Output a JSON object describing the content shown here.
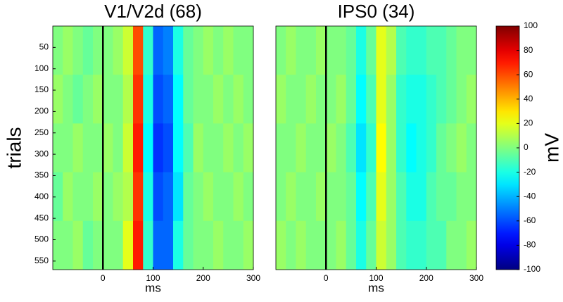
{
  "chart_data": [
    {
      "type": "heatmap",
      "title": "V1/V2d (68)",
      "xlabel": "ms",
      "ylabel": "trials",
      "xlim": [
        -100,
        300
      ],
      "xticks": [
        0,
        100,
        200,
        300
      ],
      "ylim": [
        0,
        570
      ],
      "y_reversed": true,
      "yticks": [
        50,
        100,
        150,
        200,
        250,
        300,
        350,
        400,
        450,
        500,
        550
      ],
      "vline": 0,
      "colormap": "jet",
      "x_bins": [
        -100,
        -80,
        -60,
        -40,
        -20,
        0,
        20,
        40,
        60,
        80,
        100,
        120,
        140,
        160,
        180,
        200,
        220,
        240,
        260,
        280,
        300
      ],
      "y_bins": [
        0,
        114,
        228,
        342,
        456,
        570
      ],
      "z": [
        [
          0,
          5,
          0,
          -5,
          0,
          0,
          5,
          15,
          60,
          -15,
          -55,
          -50,
          -20,
          -5,
          0,
          5,
          0,
          5,
          0,
          0
        ],
        [
          5,
          0,
          -5,
          0,
          5,
          0,
          0,
          10,
          65,
          -20,
          -60,
          -55,
          -25,
          -5,
          0,
          0,
          5,
          0,
          5,
          0
        ],
        [
          0,
          0,
          5,
          0,
          0,
          5,
          0,
          15,
          70,
          -25,
          -65,
          -60,
          -25,
          -10,
          5,
          0,
          0,
          5,
          0,
          5
        ],
        [
          -5,
          5,
          0,
          0,
          5,
          0,
          5,
          10,
          65,
          -20,
          -60,
          -55,
          -30,
          -5,
          0,
          5,
          0,
          0,
          5,
          0
        ],
        [
          0,
          0,
          5,
          -5,
          0,
          0,
          0,
          20,
          70,
          -15,
          -55,
          -55,
          -20,
          -5,
          0,
          0,
          5,
          0,
          0,
          5
        ]
      ]
    },
    {
      "type": "heatmap",
      "title": "IPS0 (34)",
      "xlabel": "ms",
      "xlim": [
        -100,
        300
      ],
      "xticks": [
        0,
        100,
        200,
        300
      ],
      "ylim": [
        0,
        570
      ],
      "y_reversed": true,
      "vline": 0,
      "colormap": "jet",
      "x_bins": [
        -100,
        -80,
        -60,
        -40,
        -20,
        0,
        20,
        40,
        60,
        80,
        100,
        120,
        140,
        160,
        180,
        200,
        220,
        240,
        260,
        280,
        300
      ],
      "y_bins": [
        0,
        114,
        228,
        342,
        456,
        570
      ],
      "z": [
        [
          0,
          5,
          0,
          0,
          5,
          0,
          0,
          -5,
          -20,
          -5,
          20,
          10,
          -10,
          -15,
          -15,
          -10,
          -10,
          -5,
          0,
          0
        ],
        [
          5,
          0,
          0,
          5,
          0,
          0,
          5,
          -5,
          -25,
          -10,
          20,
          5,
          -15,
          -20,
          -20,
          -15,
          -10,
          -5,
          0,
          5
        ],
        [
          0,
          0,
          5,
          0,
          0,
          5,
          0,
          -10,
          -30,
          -15,
          25,
          5,
          -15,
          -25,
          -20,
          -15,
          -5,
          0,
          5,
          0
        ],
        [
          0,
          5,
          0,
          0,
          5,
          0,
          0,
          -5,
          -25,
          -10,
          20,
          5,
          -10,
          -20,
          -20,
          -10,
          -5,
          -5,
          0,
          0
        ],
        [
          5,
          0,
          5,
          0,
          0,
          0,
          5,
          -5,
          -20,
          -5,
          15,
          5,
          -10,
          -15,
          -15,
          -10,
          -10,
          0,
          0,
          5
        ]
      ]
    }
  ],
  "colorbar": {
    "label": "mV",
    "lim": [
      -100,
      100
    ],
    "ticks": [
      -100,
      -80,
      -60,
      -40,
      -20,
      0,
      20,
      40,
      60,
      80,
      100
    ]
  }
}
